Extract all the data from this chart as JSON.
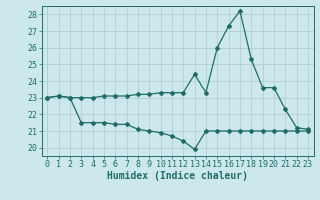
{
  "title": "",
  "xlabel": "Humidex (Indice chaleur)",
  "bg_color": "#cce8ec",
  "grid_color": "#b0ced4",
  "line_color": "#1e6e66",
  "spine_color": "#1e6e66",
  "xlim": [
    -0.5,
    23.5
  ],
  "ylim": [
    19.5,
    28.5
  ],
  "yticks": [
    20,
    21,
    22,
    23,
    24,
    25,
    26,
    27,
    28
  ],
  "xticks": [
    0,
    1,
    2,
    3,
    4,
    5,
    6,
    7,
    8,
    9,
    10,
    11,
    12,
    13,
    14,
    15,
    16,
    17,
    18,
    19,
    20,
    21,
    22,
    23
  ],
  "line1_x": [
    0,
    1,
    2,
    3,
    4,
    5,
    6,
    7,
    8,
    9,
    10,
    11,
    12,
    13,
    14,
    15,
    16,
    17,
    18,
    19,
    20,
    21,
    22,
    23
  ],
  "line1_y": [
    23.0,
    23.1,
    23.0,
    21.5,
    21.5,
    21.5,
    21.4,
    21.4,
    21.1,
    21.0,
    20.9,
    20.7,
    20.4,
    19.9,
    21.0,
    21.0,
    21.0,
    21.0,
    21.0,
    21.0,
    21.0,
    21.0,
    21.0,
    21.0
  ],
  "line2_x": [
    0,
    1,
    2,
    3,
    4,
    5,
    6,
    7,
    8,
    9,
    10,
    11,
    12,
    13,
    14,
    15,
    16,
    17,
    18,
    19,
    20,
    21,
    22,
    23
  ],
  "line2_y": [
    23.0,
    23.1,
    23.0,
    23.0,
    23.0,
    23.1,
    23.1,
    23.1,
    23.2,
    23.2,
    23.3,
    23.3,
    23.3,
    24.4,
    23.3,
    26.0,
    27.3,
    28.2,
    25.3,
    23.6,
    23.6,
    22.3,
    21.2,
    21.1
  ],
  "tick_fontsize": 6,
  "xlabel_fontsize": 7,
  "marker_size": 2.0,
  "linewidth": 0.9
}
